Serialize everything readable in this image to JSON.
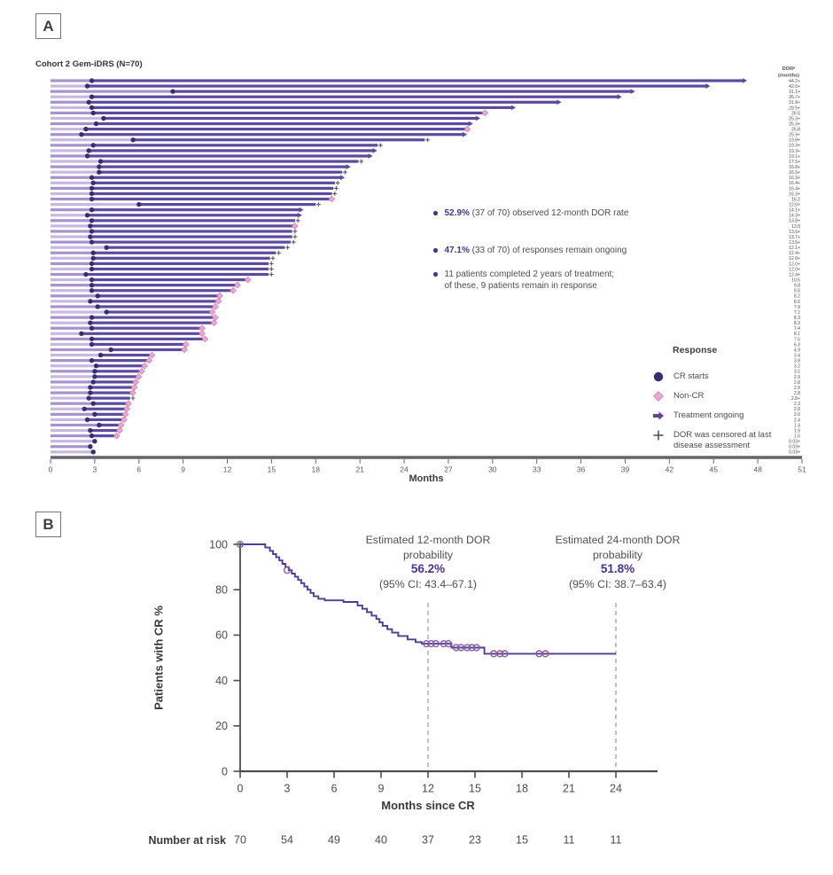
{
  "colors": {
    "bar_dark": "#5b4a9d",
    "bar_light_a": "#a892cc",
    "bar_light_b": "#c6b9e0",
    "cr_circle": "#3b2c6f",
    "non_cr_diamond": "#e9a8d0",
    "diamond_border": "#cf7fb7",
    "arrow": "#6a3f99",
    "plus": "#5a5a5a",
    "km_line": "#4f3d94",
    "censor": "#8a5ba6",
    "accent_text": "#46348e",
    "axis": "#63636a",
    "text_gray": "#4f4f4f"
  },
  "chart_data": [
    {
      "type": "bar",
      "subtype": "swimmer-plot",
      "panel_label": "A",
      "title": "Cohort 2 Gem-iDRS (N=70)",
      "xlabel": "Months",
      "xlim": [
        0,
        51
      ],
      "x_ticks": [
        0,
        3,
        6,
        9,
        12,
        15,
        18,
        21,
        24,
        27,
        30,
        33,
        36,
        39,
        42,
        45,
        48,
        51
      ],
      "dor_header": {
        "line1": "DORᵃ",
        "line2": "(months)"
      },
      "annotations": [
        {
          "bold": "52.9%",
          "rest": " (37 of 70) observed 12-month DOR rate"
        },
        {
          "bold": "47.1%",
          "rest": " (33 of 70) of responses remain ongoing"
        },
        {
          "bold": "",
          "rest": "11 patients completed 2 years of treatment;",
          "line2": "of these, 9 patients remain in response"
        }
      ],
      "legend": {
        "title": "Response",
        "items": [
          {
            "marker": "circle",
            "label": "CR starts"
          },
          {
            "marker": "diamond",
            "label": "Non-CR"
          },
          {
            "marker": "arrow",
            "label": "Treatment ongoing"
          },
          {
            "marker": "plus",
            "label": "DOR was censored at last",
            "label2": "disease assessment"
          }
        ]
      },
      "patients_format": [
        "cr_start_months",
        "dor_months",
        "dor_label",
        "end_marker"
      ],
      "patients": [
        [
          2.8,
          44.2,
          "44.2+",
          "arrow"
        ],
        [
          2.5,
          42.0,
          "42.0+",
          "arrow"
        ],
        [
          8.3,
          31.1,
          "31.1+",
          "arrow"
        ],
        [
          2.8,
          35.7,
          "35.7+",
          "arrow"
        ],
        [
          2.6,
          31.8,
          "31.8+",
          "arrow"
        ],
        [
          2.8,
          28.5,
          "28.5+",
          "arrow"
        ],
        [
          2.9,
          26.5,
          "26.5",
          "diamond"
        ],
        [
          3.6,
          25.3,
          "25.3+",
          "arrow"
        ],
        [
          3.1,
          25.3,
          "25.3+",
          "arrow"
        ],
        [
          2.4,
          25.8,
          "25.8",
          "diamond"
        ],
        [
          2.1,
          25.9,
          "25.9+",
          "arrow"
        ],
        [
          5.6,
          19.8,
          "19.8+",
          "plus"
        ],
        [
          2.9,
          19.3,
          "19.3+",
          "plus"
        ],
        [
          2.6,
          19.3,
          "19.3+",
          "arrow"
        ],
        [
          2.5,
          19.1,
          "19.1+",
          "arrow"
        ],
        [
          3.4,
          17.5,
          "17.5+",
          "plus"
        ],
        [
          3.3,
          16.8,
          "16.8+",
          "arrow"
        ],
        [
          3.3,
          16.5,
          "16.5+",
          "plus"
        ],
        [
          2.8,
          16.9,
          "16.9+",
          "arrow"
        ],
        [
          2.9,
          16.4,
          "16.4+",
          "plus"
        ],
        [
          2.8,
          16.4,
          "16.4+",
          "plus"
        ],
        [
          2.8,
          16.3,
          "16.3+",
          "plus"
        ],
        [
          2.8,
          16.2,
          "16.2",
          "diamond"
        ],
        [
          6.0,
          12.0,
          "12.0+",
          "plus"
        ],
        [
          2.8,
          14.1,
          "14.1+",
          "arrow"
        ],
        [
          2.5,
          14.3,
          "14.3+",
          "arrow"
        ],
        [
          2.8,
          13.8,
          "13.8+",
          "plus"
        ],
        [
          2.7,
          13.8,
          "13.8",
          "diamond"
        ],
        [
          2.8,
          13.6,
          "13.6+",
          "plus"
        ],
        [
          2.7,
          13.7,
          "13.7+",
          "plus"
        ],
        [
          2.8,
          13.5,
          "13.5+",
          "plus"
        ],
        [
          3.8,
          12.1,
          "12.1+",
          "plus"
        ],
        [
          2.9,
          12.4,
          "12.4+",
          "plus"
        ],
        [
          2.9,
          12.0,
          "12.0+",
          "plus"
        ],
        [
          2.8,
          12.0,
          "12.0+",
          "plus"
        ],
        [
          2.8,
          12.0,
          "12.0+",
          "plus"
        ],
        [
          2.4,
          12.4,
          "12.4+",
          "plus"
        ],
        [
          2.8,
          10.5,
          "10.5",
          "diamond"
        ],
        [
          2.8,
          9.8,
          "9.8",
          "diamond"
        ],
        [
          2.8,
          9.5,
          "9.5",
          "diamond"
        ],
        [
          3.2,
          8.2,
          "8.2",
          "diamond"
        ],
        [
          2.7,
          8.6,
          "8.6",
          "diamond"
        ],
        [
          3.2,
          7.9,
          "7.9",
          "diamond"
        ],
        [
          3.8,
          7.1,
          "7.1",
          "diamond"
        ],
        [
          2.8,
          8.3,
          "8.3",
          "diamond"
        ],
        [
          2.7,
          8.3,
          "8.3",
          "diamond"
        ],
        [
          2.8,
          7.4,
          "7.4",
          "diamond"
        ],
        [
          2.1,
          8.1,
          "8.1",
          "diamond"
        ],
        [
          2.8,
          7.6,
          "7.6",
          "diamond"
        ],
        [
          2.8,
          6.3,
          "6.3",
          "diamond"
        ],
        [
          4.1,
          4.9,
          "4.9",
          "diamond"
        ],
        [
          3.4,
          3.4,
          "3.4",
          "diamond"
        ],
        [
          2.8,
          3.8,
          "3.8",
          "diamond"
        ],
        [
          3.1,
          3.2,
          "3.2",
          "diamond"
        ],
        [
          3.0,
          3.1,
          "3.1",
          "diamond"
        ],
        [
          3.0,
          2.9,
          "2.9",
          "diamond"
        ],
        [
          2.9,
          2.8,
          "2.8",
          "diamond"
        ],
        [
          2.7,
          2.9,
          "2.9",
          "diamond"
        ],
        [
          2.7,
          2.8,
          "2.8",
          "diamond"
        ],
        [
          2.6,
          2.8,
          "2.8+",
          "plus"
        ],
        [
          2.9,
          2.3,
          "2.3",
          "diamond"
        ],
        [
          2.3,
          2.8,
          "2.8",
          "diamond"
        ],
        [
          3.0,
          2.0,
          "2.0",
          "diamond"
        ],
        [
          2.5,
          2.4,
          "2.4",
          "diamond"
        ],
        [
          3.3,
          1.4,
          "1.4",
          "diamond"
        ],
        [
          2.7,
          1.9,
          "1.9",
          "diamond"
        ],
        [
          2.8,
          1.6,
          "1.6",
          "diamond"
        ],
        [
          3.0,
          0.03,
          "0.03+",
          "none"
        ],
        [
          2.7,
          0.03,
          "0.03+",
          "none"
        ],
        [
          2.9,
          0.03,
          "0.03+",
          "none"
        ]
      ]
    },
    {
      "type": "line",
      "subtype": "kaplan-meier",
      "panel_label": "B",
      "ylabel": "Patients with CR %",
      "xlabel": "Months since CR",
      "ylim": [
        0,
        100
      ],
      "y_ticks": [
        0,
        20,
        40,
        60,
        80,
        100
      ],
      "x_ticks": [
        0,
        3,
        6,
        9,
        12,
        15,
        18,
        21,
        24
      ],
      "annotations": [
        {
          "line1": "Estimated 12-month DOR",
          "line2": "probability",
          "value": "56.2%",
          "ci": "(95% CI: 43.4–67.1)",
          "month": 12
        },
        {
          "line1": "Estimated 24-month DOR",
          "line2": "probability",
          "value": "51.8%",
          "ci": "(95% CI: 38.7–63.4)",
          "month": 24
        }
      ],
      "number_at_risk": {
        "label": "Number at risk",
        "values": [
          70,
          54,
          49,
          40,
          37,
          23,
          15,
          11,
          11
        ]
      },
      "km_steps": [
        [
          0,
          100
        ],
        [
          1.6,
          98.6
        ],
        [
          1.9,
          97.1
        ],
        [
          2.1,
          95.7
        ],
        [
          2.3,
          94.3
        ],
        [
          2.5,
          92.9
        ],
        [
          2.7,
          91.4
        ],
        [
          2.9,
          90
        ],
        [
          3.1,
          88.6
        ],
        [
          3.3,
          87.1
        ],
        [
          3.5,
          85.7
        ],
        [
          3.7,
          84.3
        ],
        [
          3.9,
          82.9
        ],
        [
          4.1,
          81.4
        ],
        [
          4.3,
          80
        ],
        [
          4.5,
          78.6
        ],
        [
          4.7,
          77.1
        ],
        [
          5.0,
          76
        ],
        [
          5.4,
          75.3
        ],
        [
          6.6,
          74.6
        ],
        [
          7.5,
          73.1
        ],
        [
          7.8,
          71.6
        ],
        [
          8.1,
          70.1
        ],
        [
          8.4,
          68.6
        ],
        [
          8.7,
          67.1
        ],
        [
          8.9,
          65.6
        ],
        [
          9.1,
          64.1
        ],
        [
          9.4,
          62.6
        ],
        [
          9.7,
          61.1
        ],
        [
          10.1,
          59.6
        ],
        [
          10.7,
          58.1
        ],
        [
          11.2,
          56.9
        ],
        [
          11.6,
          56.2
        ],
        [
          13.5,
          54.5
        ],
        [
          15.6,
          51.8
        ],
        [
          24,
          51.8
        ]
      ],
      "censor_marks": [
        [
          0,
          100
        ],
        [
          3.0,
          88.6
        ],
        [
          11.9,
          56.2
        ],
        [
          12.2,
          56.2
        ],
        [
          12.5,
          56.2
        ],
        [
          13.0,
          56.2
        ],
        [
          13.3,
          56.2
        ],
        [
          13.8,
          54.5
        ],
        [
          14.1,
          54.5
        ],
        [
          14.5,
          54.5
        ],
        [
          14.8,
          54.5
        ],
        [
          15.1,
          54.5
        ],
        [
          16.2,
          51.8
        ],
        [
          16.6,
          51.8
        ],
        [
          16.9,
          51.8
        ],
        [
          19.1,
          51.8
        ],
        [
          19.5,
          51.8
        ]
      ]
    }
  ]
}
